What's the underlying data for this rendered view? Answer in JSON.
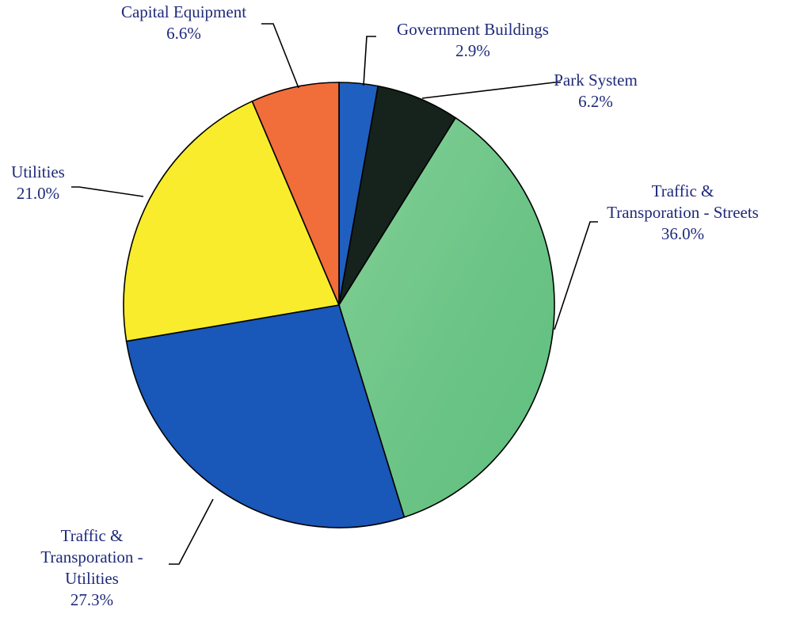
{
  "chart_data": {
    "type": "pie",
    "start_angle_deg": 0,
    "direction": "clockwise",
    "slices": [
      {
        "label_lines": [
          "Government Buildings"
        ],
        "pct_text": "2.9%",
        "value": 2.9,
        "color": "#1f5fbf"
      },
      {
        "label_lines": [
          "Park System"
        ],
        "pct_text": "6.2%",
        "value": 6.2,
        "color": "#15231c"
      },
      {
        "label_lines": [
          "Traffic &",
          "Transporation - Streets"
        ],
        "pct_text": "36.0%",
        "value": 36.0,
        "color": "#6cc487"
      },
      {
        "label_lines": [
          "Traffic &",
          "Transporation -",
          "Utilities"
        ],
        "pct_text": "27.3%",
        "value": 27.3,
        "color": "#1957b8"
      },
      {
        "label_lines": [
          "Utilities"
        ],
        "pct_text": "21.0%",
        "value": 21.0,
        "color": "#f8ec2d"
      },
      {
        "label_lines": [
          "Capital Equipment"
        ],
        "pct_text": "6.6%",
        "value": 6.6,
        "color": "#f16d3a"
      }
    ]
  }
}
